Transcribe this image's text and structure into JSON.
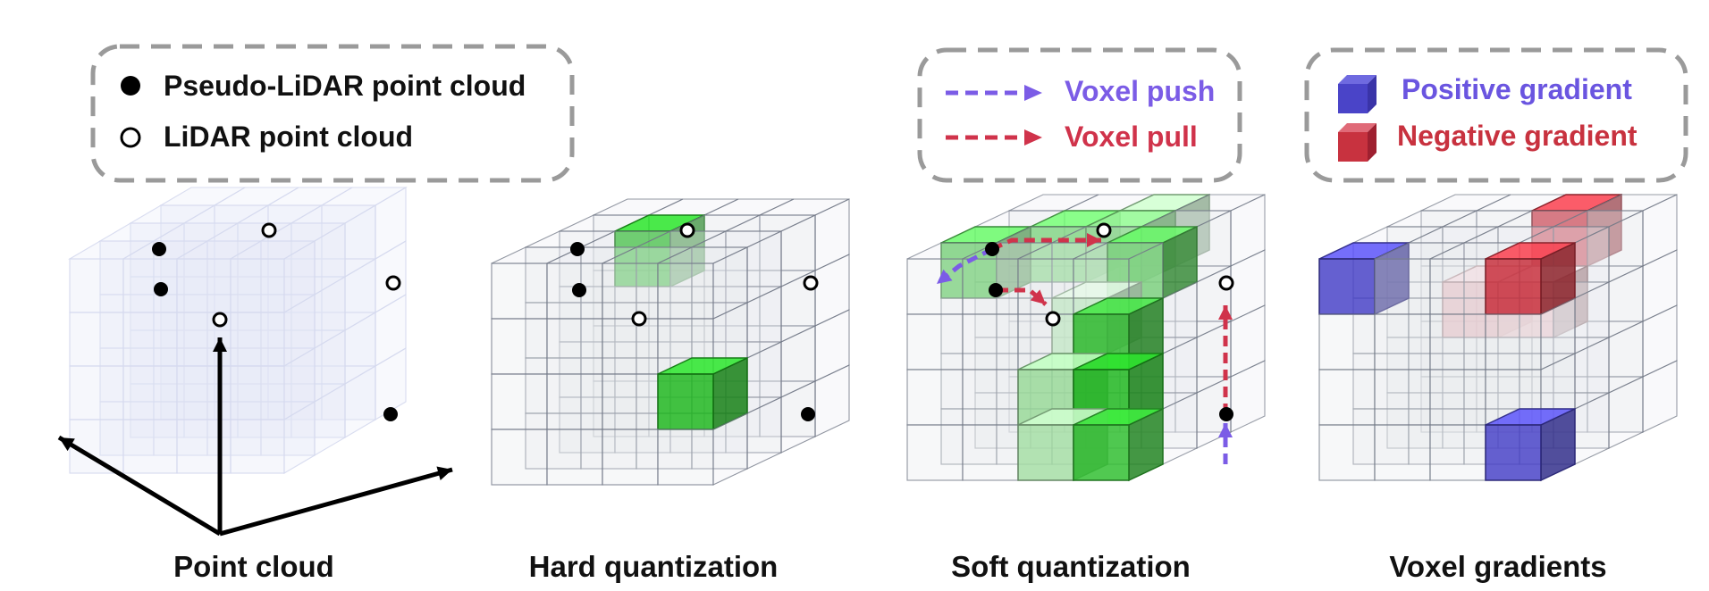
{
  "legend_points": {
    "pseudo_lidar": "Pseudo-LiDAR point cloud",
    "lidar": "LiDAR point cloud"
  },
  "legend_arrows": {
    "push": "Voxel push",
    "pull": "Voxel pull"
  },
  "legend_gradients": {
    "positive": "Positive gradient",
    "negative": "Negative gradient"
  },
  "panels": {
    "point_cloud": "Point cloud",
    "hard_quantization": "Hard quantization",
    "soft_quantization": "Soft quantization",
    "voxel_gradients": "Voxel gradients"
  },
  "colors": {
    "push": "#7b5ce6",
    "pull": "#d0334b",
    "positive": "#4a44c8",
    "negative": "#c8323f",
    "occupied": "#22b822",
    "legend_border": "#9a9a9a"
  }
}
